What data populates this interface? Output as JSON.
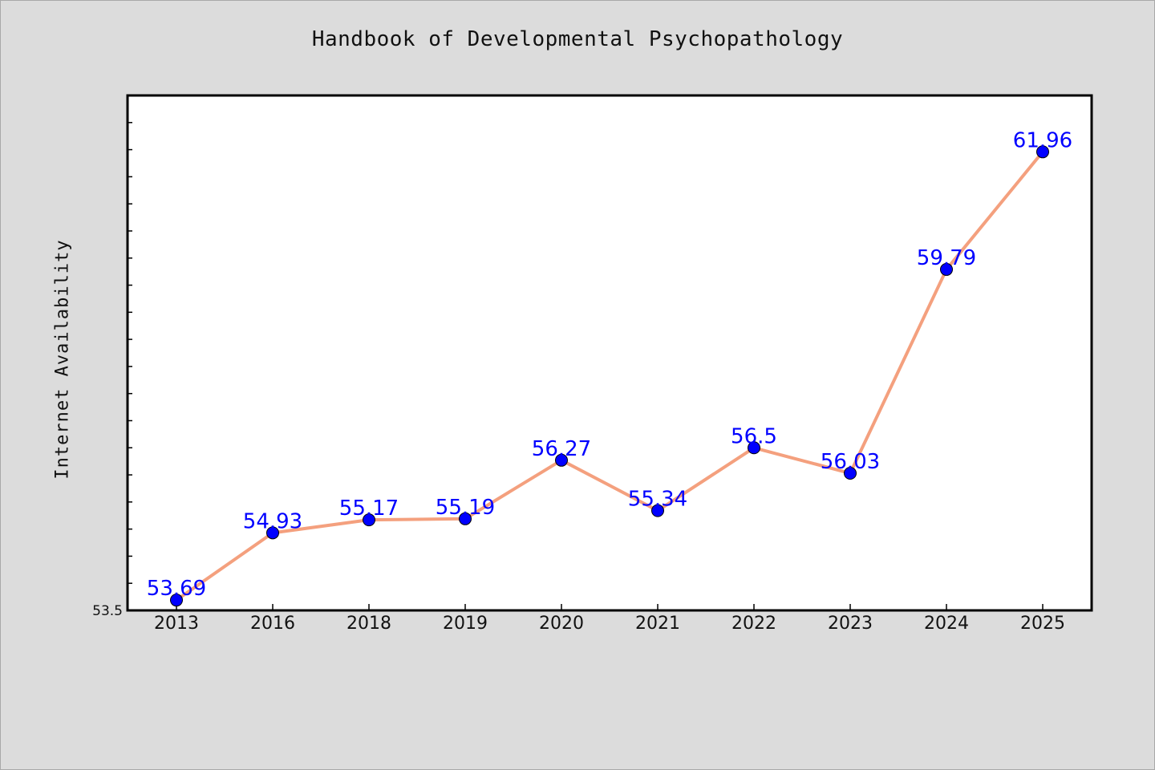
{
  "chart_data": {
    "type": "line",
    "title": "Handbook of Developmental Psychopathology",
    "xlabel": "",
    "ylabel": "Internet Availability",
    "categories": [
      "2013",
      "2016",
      "2018",
      "2019",
      "2020",
      "2021",
      "2022",
      "2023",
      "2024",
      "2025"
    ],
    "series": [
      {
        "values": [
          53.69,
          54.93,
          55.17,
          55.19,
          56.27,
          55.34,
          56.5,
          56.03,
          59.79,
          61.96
        ],
        "labels": [
          "53.69",
          "54.93",
          "55.17",
          "55.19",
          "56.27",
          "55.34",
          "56.5",
          "56.03",
          "59.79",
          "61.96"
        ]
      }
    ],
    "ylim": [
      53.5,
      63.0
    ],
    "yticks_labeled": [
      "53.5"
    ],
    "grid": false,
    "line_color": "#f4a07e",
    "marker_color": "#0000ff",
    "label_color": "#0000ff",
    "plot_background": "#ffffff",
    "figure_background": "#dcdcdc"
  }
}
